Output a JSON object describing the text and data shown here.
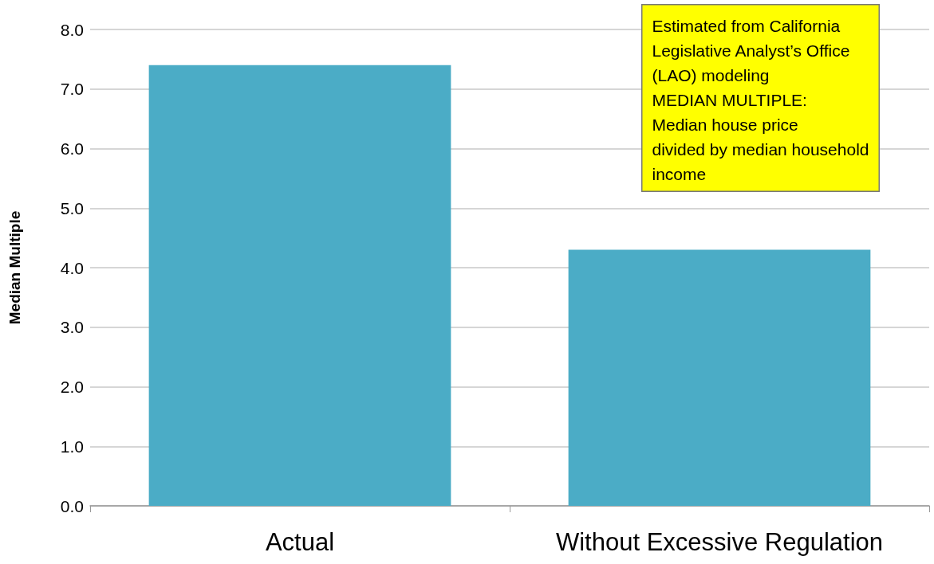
{
  "chart_data": {
    "type": "bar",
    "ylabel": "Median Multiple",
    "categories": [
      "Actual",
      "Without Excessive Regulation"
    ],
    "values": [
      7.4,
      4.3
    ],
    "color": "#4bacc6",
    "ylim": [
      0,
      8
    ],
    "yticks": [
      {
        "value": 0,
        "label": "0.0"
      },
      {
        "value": 1,
        "label": "1.0"
      },
      {
        "value": 2,
        "label": "2.0"
      },
      {
        "value": 3,
        "label": "3.0"
      },
      {
        "value": 4,
        "label": "4.0"
      },
      {
        "value": 5,
        "label": "5.0"
      },
      {
        "value": 6,
        "label": "6.0"
      },
      {
        "value": 7,
        "label": "7.0"
      },
      {
        "value": 8,
        "label": "8.0"
      }
    ],
    "grid": true,
    "annotations": [
      "Estimated from California\nLegislative Analyst’s Office\n(LAO) modeling\nMEDIAN MULTIPLE:\nMedian house price\ndivided by median household\nincome"
    ]
  }
}
